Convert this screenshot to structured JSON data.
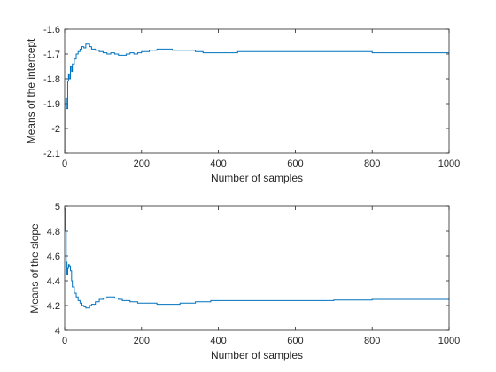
{
  "chart_data": [
    {
      "type": "line",
      "title": "",
      "xlabel": "Number of samples",
      "ylabel": "Means of the intercept",
      "xlim": [
        0,
        1000
      ],
      "ylim": [
        -2.1,
        -1.6
      ],
      "xticks": [
        0,
        200,
        400,
        600,
        800,
        1000
      ],
      "yticks": [
        -1.6,
        -1.7,
        -1.8,
        -1.9,
        -2,
        -2.1
      ],
      "xtick_labels": [
        "0",
        "200",
        "400",
        "600",
        "800",
        "1000"
      ],
      "ytick_labels": [
        "-1.6",
        "-1.7",
        "-1.8",
        "-1.9",
        "-2",
        "-2.1"
      ],
      "grid": false,
      "line_color": "#0072bd",
      "series": [
        {
          "x": [
            1,
            3,
            5,
            8,
            10,
            12,
            15,
            18,
            20,
            25,
            30,
            35,
            40,
            45,
            50,
            55,
            60,
            65,
            70,
            80,
            90,
            100,
            110,
            120,
            130,
            140,
            150,
            160,
            170,
            180,
            190,
            200,
            220,
            240,
            260,
            280,
            300,
            320,
            340,
            360,
            380,
            400,
            450,
            500,
            550,
            600,
            650,
            700,
            750,
            800,
            850,
            900,
            950,
            1000
          ],
          "y": [
            -2.09,
            -1.88,
            -1.92,
            -1.81,
            -1.78,
            -1.8,
            -1.75,
            -1.77,
            -1.74,
            -1.72,
            -1.7,
            -1.69,
            -1.68,
            -1.67,
            -1.675,
            -1.66,
            -1.66,
            -1.67,
            -1.68,
            -1.685,
            -1.69,
            -1.695,
            -1.7,
            -1.695,
            -1.7,
            -1.705,
            -1.705,
            -1.7,
            -1.695,
            -1.7,
            -1.695,
            -1.69,
            -1.685,
            -1.68,
            -1.68,
            -1.685,
            -1.685,
            -1.685,
            -1.69,
            -1.695,
            -1.695,
            -1.695,
            -1.69,
            -1.69,
            -1.69,
            -1.69,
            -1.69,
            -1.69,
            -1.69,
            -1.695,
            -1.695,
            -1.695,
            -1.695,
            -1.695
          ]
        }
      ]
    },
    {
      "type": "line",
      "title": "",
      "xlabel": "Number of samples",
      "ylabel": "Means of the slope",
      "xlim": [
        0,
        1000
      ],
      "ylim": [
        4,
        5
      ],
      "xticks": [
        0,
        200,
        400,
        600,
        800,
        1000
      ],
      "yticks": [
        4,
        4.2,
        4.4,
        4.6,
        4.8,
        5
      ],
      "xtick_labels": [
        "0",
        "200",
        "400",
        "600",
        "800",
        "1000"
      ],
      "ytick_labels": [
        "4",
        "4.2",
        "4.4",
        "4.6",
        "4.8",
        "5"
      ],
      "grid": false,
      "line_color": "#0072bd",
      "series": [
        {
          "x": [
            1,
            2,
            4,
            6,
            8,
            10,
            12,
            15,
            18,
            20,
            25,
            30,
            35,
            40,
            45,
            50,
            55,
            60,
            65,
            70,
            80,
            90,
            100,
            110,
            120,
            130,
            140,
            150,
            160,
            170,
            180,
            190,
            200,
            220,
            240,
            260,
            280,
            300,
            320,
            340,
            360,
            380,
            400,
            450,
            500,
            550,
            600,
            650,
            700,
            750,
            800,
            850,
            900,
            950,
            1000
          ],
          "y": [
            4.98,
            4.8,
            4.55,
            4.45,
            4.5,
            4.53,
            4.52,
            4.48,
            4.4,
            4.35,
            4.3,
            4.27,
            4.24,
            4.22,
            4.2,
            4.19,
            4.18,
            4.18,
            4.2,
            4.21,
            4.23,
            4.25,
            4.26,
            4.27,
            4.27,
            4.26,
            4.25,
            4.24,
            4.24,
            4.23,
            4.23,
            4.22,
            4.22,
            4.22,
            4.21,
            4.21,
            4.21,
            4.22,
            4.22,
            4.23,
            4.23,
            4.24,
            4.24,
            4.24,
            4.24,
            4.24,
            4.24,
            4.24,
            4.245,
            4.245,
            4.25,
            4.25,
            4.25,
            4.25,
            4.255
          ]
        }
      ]
    }
  ]
}
